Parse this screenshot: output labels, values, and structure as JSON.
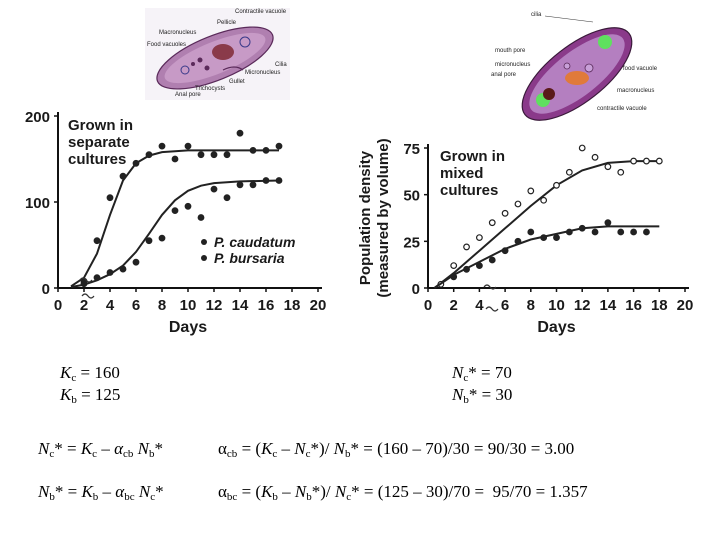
{
  "illustrations": {
    "left": {
      "labels": [
        "Contractile vacuole",
        "Pellicle",
        "Macronucleus",
        "Food vacuoles",
        "Cilia",
        "Micronucleus",
        "Gullet",
        "Trichocysts",
        "Anal pore"
      ]
    },
    "right": {
      "labels": [
        "cilia",
        "mouth pore",
        "micronucleus",
        "anal pore",
        "food vacuole",
        "macronucleus",
        "contractile vacuole"
      ]
    }
  },
  "chart_data": [
    {
      "type": "scatter",
      "annotation": "Grown in separate cultures",
      "xlabel": "Days",
      "ylabel": "",
      "xlim": [
        0,
        20
      ],
      "ylim": [
        0,
        200
      ],
      "x_ticks": [
        0,
        2,
        4,
        6,
        8,
        10,
        12,
        14,
        16,
        18,
        20
      ],
      "y_ticks": [
        0,
        100,
        200
      ],
      "x_tick_labels": [
        "0",
        "2",
        "4",
        "6",
        "8",
        "10",
        "12",
        "14",
        "16",
        "18",
        "20"
      ],
      "y_tick_labels": [
        "0",
        "100",
        "200"
      ],
      "legend": [
        "P. caudatum",
        "P. bursaria"
      ],
      "legend_position": "bottom-right",
      "series": [
        {
          "name": "P. caudatum",
          "points": [
            [
              2,
              8
            ],
            [
              3,
              55
            ],
            [
              4,
              105
            ],
            [
              5,
              130
            ],
            [
              6,
              145
            ],
            [
              7,
              155
            ],
            [
              8,
              165
            ],
            [
              9,
              150
            ],
            [
              10,
              165
            ],
            [
              11,
              155
            ],
            [
              12,
              155
            ],
            [
              13,
              155
            ],
            [
              14,
              180
            ],
            [
              15,
              160
            ],
            [
              16,
              160
            ],
            [
              17,
              165
            ]
          ],
          "curve": [
            [
              1,
              2
            ],
            [
              2,
              12
            ],
            [
              3,
              40
            ],
            [
              4,
              85
            ],
            [
              5,
              125
            ],
            [
              6,
              145
            ],
            [
              7,
              154
            ],
            [
              8,
              158
            ],
            [
              10,
              160
            ],
            [
              12,
              160
            ],
            [
              14,
              160
            ],
            [
              17,
              160
            ]
          ]
        },
        {
          "name": "P. bursaria",
          "points": [
            [
              2,
              5
            ],
            [
              3,
              12
            ],
            [
              4,
              18
            ],
            [
              5,
              22
            ],
            [
              6,
              30
            ],
            [
              7,
              55
            ],
            [
              8,
              58
            ],
            [
              9,
              90
            ],
            [
              10,
              95
            ],
            [
              11,
              82
            ],
            [
              12,
              115
            ],
            [
              13,
              105
            ],
            [
              14,
              120
            ],
            [
              15,
              120
            ],
            [
              16,
              125
            ],
            [
              17,
              125
            ]
          ],
          "curve": [
            [
              1,
              1
            ],
            [
              2,
              4
            ],
            [
              3,
              9
            ],
            [
              4,
              16
            ],
            [
              5,
              26
            ],
            [
              6,
              42
            ],
            [
              7,
              63
            ],
            [
              8,
              85
            ],
            [
              9,
              102
            ],
            [
              10,
              113
            ],
            [
              11,
              119
            ],
            [
              12,
              122
            ],
            [
              14,
              124
            ],
            [
              17,
              125
            ]
          ]
        }
      ]
    },
    {
      "type": "scatter",
      "annotation": "Grown in mixed cultures",
      "xlabel": "Days",
      "ylabel": "Population density (measured by volume)",
      "xlim": [
        0,
        20
      ],
      "ylim": [
        0,
        75
      ],
      "x_ticks": [
        0,
        2,
        4,
        6,
        8,
        10,
        12,
        14,
        16,
        18,
        20
      ],
      "y_ticks": [
        0,
        25,
        50,
        75
      ],
      "x_tick_labels": [
        "0",
        "2",
        "4",
        "6",
        "8",
        "10",
        "12",
        "14",
        "16",
        "18",
        "20"
      ],
      "y_tick_labels": [
        "0",
        "25",
        "50",
        "75"
      ],
      "series": [
        {
          "name": "P. caudatum",
          "points": [
            [
              1,
              2
            ],
            [
              2,
              12
            ],
            [
              3,
              22
            ],
            [
              4,
              27
            ],
            [
              5,
              35
            ],
            [
              6,
              40
            ],
            [
              7,
              45
            ],
            [
              8,
              52
            ],
            [
              9,
              47
            ],
            [
              10,
              55
            ],
            [
              11,
              62
            ],
            [
              12,
              75
            ],
            [
              13,
              70
            ],
            [
              14,
              65
            ],
            [
              15,
              62
            ],
            [
              16,
              68
            ],
            [
              17,
              68
            ],
            [
              18,
              68
            ]
          ],
          "curve": [
            [
              0.5,
              0
            ],
            [
              2,
              8
            ],
            [
              4,
              20
            ],
            [
              6,
              32
            ],
            [
              8,
              44
            ],
            [
              10,
              55
            ],
            [
              12,
              63
            ],
            [
              14,
              67
            ],
            [
              16,
              68
            ],
            [
              18,
              68
            ]
          ]
        },
        {
          "name": "P. bursaria",
          "points": [
            [
              2,
              6
            ],
            [
              3,
              10
            ],
            [
              4,
              12
            ],
            [
              5,
              15
            ],
            [
              6,
              20
            ],
            [
              7,
              25
            ],
            [
              8,
              30
            ],
            [
              9,
              27
            ],
            [
              10,
              27
            ],
            [
              11,
              30
            ],
            [
              12,
              32
            ],
            [
              13,
              30
            ],
            [
              14,
              35
            ],
            [
              15,
              30
            ],
            [
              16,
              30
            ],
            [
              17,
              30
            ]
          ],
          "curve": [
            [
              0.5,
              0
            ],
            [
              2,
              7
            ],
            [
              4,
              14
            ],
            [
              6,
              21
            ],
            [
              8,
              26
            ],
            [
              10,
              29
            ],
            [
              12,
              32
            ],
            [
              14,
              33
            ],
            [
              16,
              33
            ],
            [
              18,
              33
            ]
          ]
        }
      ]
    }
  ],
  "equations": {
    "kc": [
      "K",
      "c",
      " = 160"
    ],
    "kb": [
      "K",
      "b",
      " = 125"
    ],
    "nc_star": [
      "N",
      "c",
      "* = 70"
    ],
    "nb_star": [
      "N",
      "b",
      "* = 30"
    ],
    "eq1": [
      "N",
      "c",
      "* = ",
      "K",
      "c",
      " – ",
      "α",
      "cb",
      " ",
      "N",
      "b",
      "*"
    ],
    "eq2": [
      "N",
      "b",
      "* = ",
      "K",
      "b",
      " – ",
      "α",
      "bc",
      " ",
      "N",
      "c",
      "*"
    ],
    "eq3": [
      "α",
      "cb",
      " = (",
      "K",
      "c",
      " – ",
      "N",
      "c",
      "*)/ ",
      "N",
      "b",
      "* = (160 – 70)/30 = 90/30 = 3.00"
    ],
    "eq4": [
      "α",
      "bc",
      " = (",
      "K",
      "b",
      " – ",
      "N",
      "b",
      "*)/ ",
      "N",
      "c",
      "* = (125 – 30)/70 =  95/70 = 1.357"
    ]
  }
}
